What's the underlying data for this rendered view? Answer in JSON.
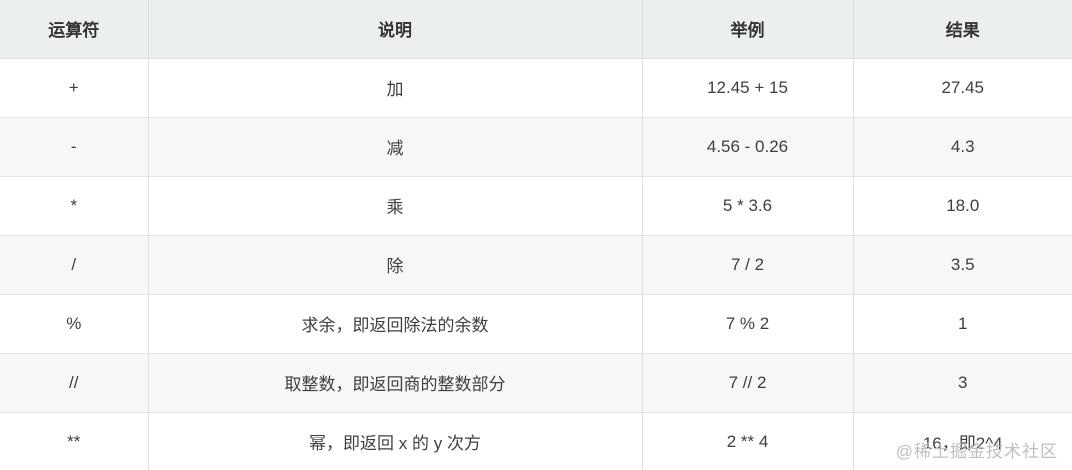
{
  "table": {
    "headers": [
      "运算符",
      "说明",
      "举例",
      "结果"
    ],
    "rows": [
      [
        "+",
        "加",
        "12.45 + 15",
        "27.45"
      ],
      [
        "-",
        "减",
        "4.56 - 0.26",
        "4.3"
      ],
      [
        "*",
        "乘",
        "5 * 3.6",
        "18.0"
      ],
      [
        "/",
        "除",
        "7 / 2",
        "3.5"
      ],
      [
        "%",
        "求余，即返回除法的余数",
        "7 % 2",
        "1"
      ],
      [
        "//",
        "取整数，即返回商的整数部分",
        "7 // 2",
        "3"
      ],
      [
        "**",
        "幂，即返回 x 的 y 次方",
        "2 ** 4",
        "16，即2^4"
      ]
    ]
  },
  "watermark": "@稀土掘金技术社区",
  "colors": {
    "header_bg": "#ebf0ee",
    "row_alt_bg": "#f7f7f7",
    "border": "#dfdfdf",
    "text": "#3f3f3f",
    "watermark": "#bfbfbf"
  }
}
